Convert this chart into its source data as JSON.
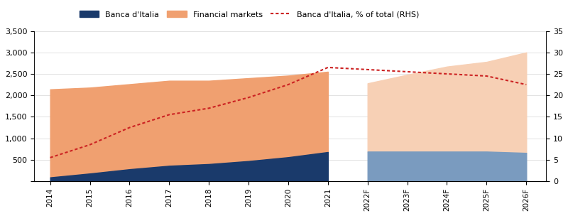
{
  "years": [
    2014,
    2015,
    2016,
    2017,
    2018,
    2019,
    2020,
    2021
  ],
  "years_forecast": [
    2022,
    2023,
    2024,
    2025,
    2026
  ],
  "banca_italia": [
    90,
    180,
    280,
    360,
    400,
    470,
    560,
    680
  ],
  "financial_markets": [
    2050,
    2000,
    1980,
    1980,
    1940,
    1930,
    1900,
    1870
  ],
  "banca_italia_forecast": [
    690,
    690,
    690,
    690,
    660
  ],
  "financial_markets_forecast": [
    1590,
    1790,
    1980,
    2090,
    2340
  ],
  "banca_pct": [
    5.5,
    8.5,
    12.5,
    15.5,
    17.0,
    19.5,
    22.5,
    26.5
  ],
  "banca_pct_forecast": [
    26.0,
    25.5,
    25.0,
    24.5,
    22.5
  ],
  "ylim_left": [
    0,
    3500
  ],
  "ylim_right": [
    0,
    35
  ],
  "yticks_left": [
    0,
    500,
    1000,
    1500,
    2000,
    2500,
    3000,
    3500
  ],
  "yticks_right": [
    0,
    5,
    10,
    15,
    20,
    25,
    30,
    35
  ],
  "color_banca_dark": "#1a3a6b",
  "color_banca_light": "#7a9bbf",
  "color_financial_dark": "#f0a070",
  "color_financial_light": "#f7d0b5",
  "color_dotted": "#cc2222",
  "legend_labels": [
    "Banca d'Italia",
    "Financial markets",
    "Banca d'Italia, % of total (RHS)"
  ]
}
